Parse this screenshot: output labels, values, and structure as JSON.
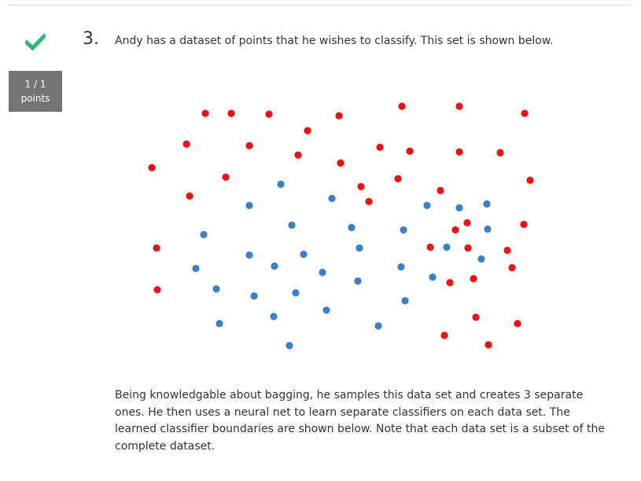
{
  "question": {
    "number": "3.",
    "prompt": "Andy has a dataset of points that he wishes to classify. This set is shown below.",
    "status_icon": "checkmark-icon",
    "score": "1 / 1",
    "score_unit": "points",
    "followup": "Being knowledgable about bagging, he samples this data set and creates 3 separate ones. He then uses a neural net to learn separate classifiers on each data set. The learned classifier boundaries are shown below. Note that each data set is a subset of the complete dataset."
  },
  "colors": {
    "check": "#2eb872",
    "score_box": "#757575",
    "red_class": "#ee1111",
    "blue_class": "#3a7fcc"
  },
  "figure": {
    "type": "scatter",
    "axes_visible": false,
    "series": [
      {
        "color": "red",
        "points": [
          [
            81,
            19
          ],
          [
            114,
            19
          ],
          [
            162,
            20
          ],
          [
            251,
            22
          ],
          [
            331,
            10
          ],
          [
            404,
            10
          ],
          [
            487,
            19
          ],
          [
            211,
            41
          ],
          [
            57,
            58
          ],
          [
            137,
            60
          ],
          [
            199,
            72
          ],
          [
            303,
            62
          ],
          [
            341,
            67
          ],
          [
            404,
            68
          ],
          [
            456,
            69
          ],
          [
            13,
            88
          ],
          [
            253,
            82
          ],
          [
            107,
            100
          ],
          [
            326,
            102
          ],
          [
            494,
            104
          ],
          [
            279,
            112
          ],
          [
            380,
            117
          ],
          [
            61,
            124
          ],
          [
            289,
            131
          ],
          [
            414,
            158
          ],
          [
            486,
            160
          ],
          [
            399,
            167
          ],
          [
            19,
            190
          ],
          [
            367,
            189
          ],
          [
            415,
            190
          ],
          [
            465,
            193
          ],
          [
            471,
            215
          ],
          [
            422,
            229
          ],
          [
            20,
            243
          ],
          [
            392,
            234
          ],
          [
            425,
            278
          ],
          [
            478,
            286
          ],
          [
            385,
            301
          ],
          [
            441,
            313
          ]
        ]
      },
      {
        "color": "blue",
        "points": [
          [
            177,
            109
          ],
          [
            242,
            127
          ],
          [
            137,
            136
          ],
          [
            363,
            136
          ],
          [
            404,
            139
          ],
          [
            439,
            134
          ],
          [
            79,
            173
          ],
          [
            191,
            161
          ],
          [
            267,
            164
          ],
          [
            333,
            167
          ],
          [
            440,
            166
          ],
          [
            137,
            199
          ],
          [
            206,
            198
          ],
          [
            277,
            190
          ],
          [
            388,
            189
          ],
          [
            432,
            204
          ],
          [
            69,
            216
          ],
          [
            169,
            213
          ],
          [
            230,
            221
          ],
          [
            275,
            232
          ],
          [
            330,
            214
          ],
          [
            370,
            227
          ],
          [
            95,
            242
          ],
          [
            143,
            251
          ],
          [
            196,
            247
          ],
          [
            335,
            257
          ],
          [
            235,
            269
          ],
          [
            99,
            286
          ],
          [
            168,
            277
          ],
          [
            301,
            289
          ],
          [
            188,
            314
          ]
        ]
      }
    ]
  }
}
